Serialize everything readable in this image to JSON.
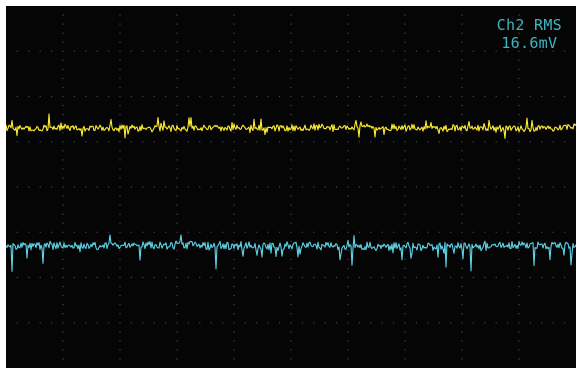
{
  "colors": {
    "background": "#050505",
    "graticule": "#7a7a7a",
    "channel1": "#ffee33",
    "channel2": "#5fd4e8",
    "readout": "#3fb7c3"
  },
  "measurement": {
    "label": "Ch2 RMS",
    "value": "16.6mV"
  },
  "graticule": {
    "divisions_x": 10,
    "divisions_y": 8,
    "minor_per_div": 5
  },
  "traces": [
    {
      "channel": "channel1",
      "level_div": 5.3,
      "noise_level": 0.12
    },
    {
      "channel": "channel2",
      "level_div": 2.7,
      "noise_level": 0.14
    }
  ]
}
